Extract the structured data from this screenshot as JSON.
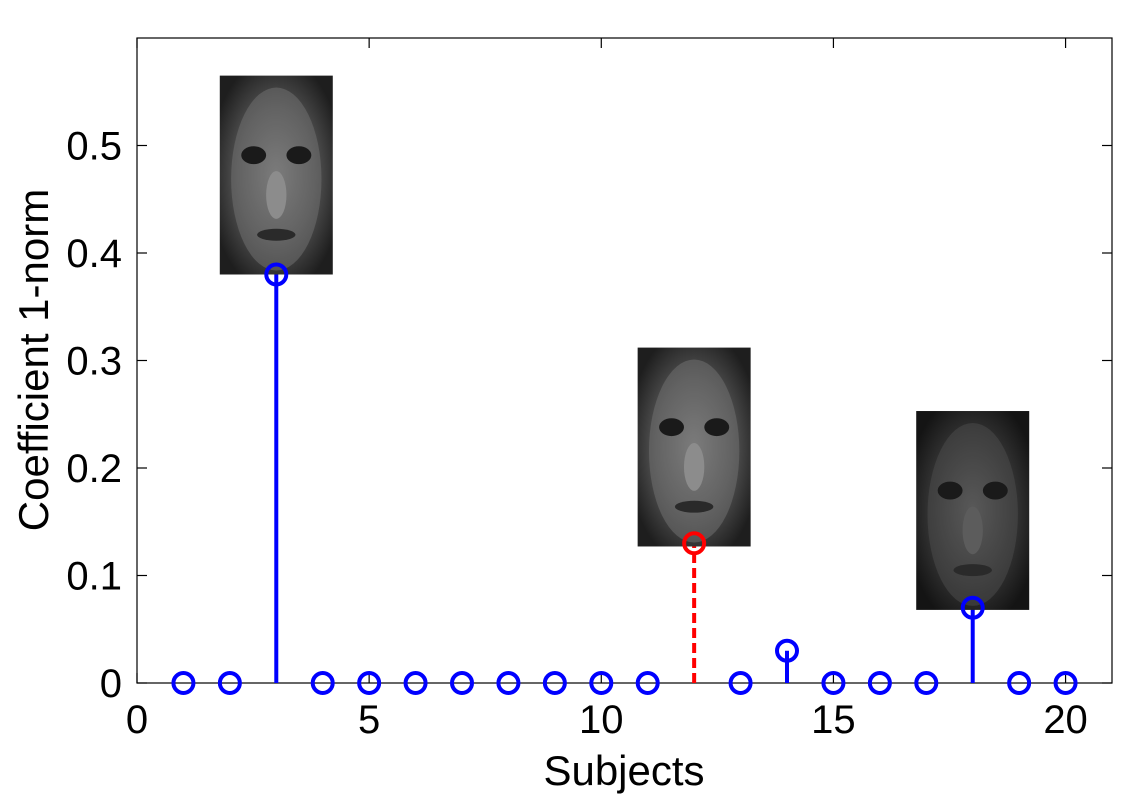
{
  "chart_data": {
    "type": "stem",
    "title": "",
    "xlabel": "Subjects",
    "ylabel": "Coefficient 1-norm",
    "xlim": [
      0,
      21
    ],
    "ylim": [
      0,
      0.6
    ],
    "xticks": [
      0,
      5,
      10,
      15,
      20
    ],
    "yticks": [
      0,
      0.1,
      0.2,
      0.3,
      0.4,
      0.5
    ],
    "xtick_labels": [
      "0",
      "5",
      "10",
      "15",
      "20"
    ],
    "ytick_labels": [
      "0",
      "0.1",
      "0.2",
      "0.3",
      "0.4",
      "0.5"
    ],
    "grid": false,
    "legend": false,
    "series": [
      {
        "style": "solid",
        "color": "#0000ff",
        "x": [
          1,
          2,
          3,
          4,
          5,
          6,
          7,
          8,
          9,
          10,
          11,
          13,
          14,
          15,
          16,
          17,
          18,
          19,
          20
        ],
        "values": [
          0,
          0,
          0.38,
          0,
          0,
          0,
          0,
          0,
          0,
          0,
          0,
          0,
          0.03,
          0,
          0,
          0,
          0.07,
          0,
          0
        ]
      },
      {
        "style": "dashed",
        "color": "#ff0000",
        "x": [
          12
        ],
        "values": [
          0.13
        ]
      }
    ],
    "annotations": [
      {
        "type": "face-image",
        "x": 3,
        "y_bottom": 0.38,
        "y_top": 0.565,
        "shade": "medium"
      },
      {
        "type": "face-image",
        "x": 12,
        "y_bottom": 0.127,
        "y_top": 0.312,
        "shade": "medium"
      },
      {
        "type": "face-image",
        "x": 18,
        "y_bottom": 0.068,
        "y_top": 0.253,
        "shade": "dark"
      }
    ]
  }
}
